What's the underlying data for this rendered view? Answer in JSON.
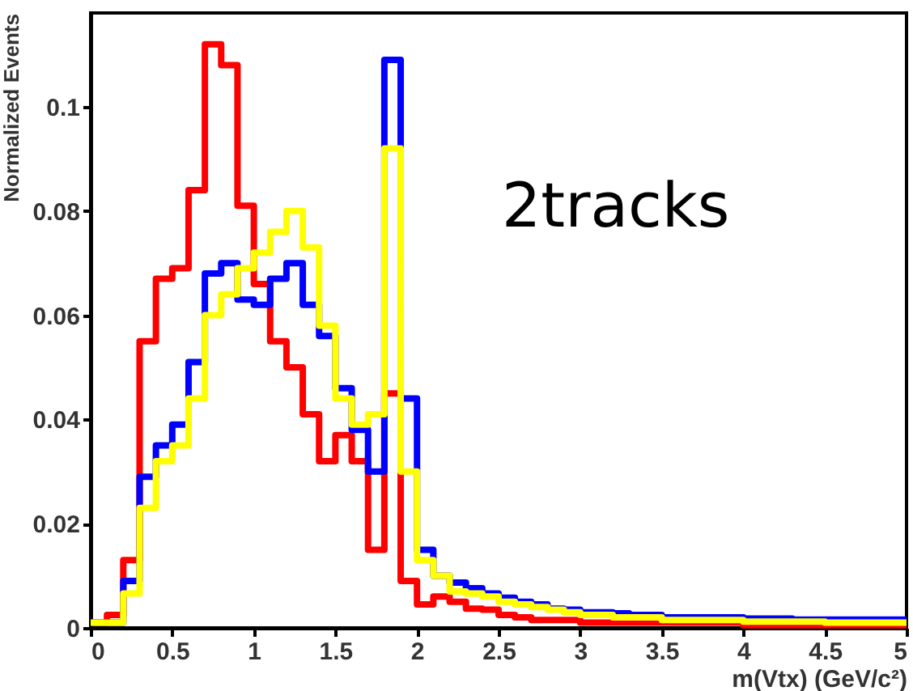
{
  "chart_data": {
    "type": "histogram",
    "xlabel": "m(Vtx) (GeV/c²)",
    "ylabel": "Normalized Events",
    "annotations": [
      "2tracks"
    ],
    "bins": [
      0,
      0.1,
      0.2,
      0.3,
      0.4,
      0.5,
      0.6,
      0.7,
      0.8,
      0.9,
      1,
      1.1,
      1.2,
      1.3,
      1.4,
      1.5,
      1.6,
      1.7,
      1.8,
      1.9,
      2,
      2.1,
      2.2,
      2.3,
      2.4,
      2.5,
      2.6,
      2.7,
      2.8,
      2.9,
      3,
      3.1,
      3.2,
      3.3,
      3.4,
      3.5,
      3.6,
      3.7,
      3.8,
      3.9,
      4,
      4.1,
      4.2,
      4.3,
      4.4,
      4.5,
      4.6,
      4.7,
      4.8,
      4.9,
      5
    ],
    "series": [
      {
        "color": "#ff0000",
        "values": [
          0.001,
          0.0025,
          0.013,
          0.055,
          0.067,
          0.069,
          0.084,
          0.112,
          0.108,
          0.081,
          0.066,
          0.055,
          0.05,
          0.041,
          0.032,
          0.037,
          0.032,
          0.015,
          0.045,
          0.009,
          0.0045,
          0.006,
          0.005,
          0.0037,
          0.0035,
          0.0025,
          0.002,
          0.0015,
          0.0015,
          0.0015,
          0.001,
          0.001,
          0.001,
          0.001,
          0.001,
          0.001,
          0.001,
          0.001,
          0.001,
          0.001,
          0.0005,
          0.0005,
          0.0005,
          0.0005,
          0.0005,
          0.0005,
          0.0005,
          0.0005,
          0.0005,
          0.0005
        ]
      },
      {
        "color": "#0000ff",
        "values": [
          0.001,
          0.001,
          0.009,
          0.029,
          0.035,
          0.039,
          0.051,
          0.068,
          0.07,
          0.063,
          0.062,
          0.067,
          0.07,
          0.062,
          0.056,
          0.046,
          0.038,
          0.03,
          0.109,
          0.044,
          0.015,
          0.01,
          0.0087,
          0.0076,
          0.0066,
          0.0058,
          0.005,
          0.0045,
          0.0037,
          0.0035,
          0.003,
          0.003,
          0.0028,
          0.0025,
          0.0025,
          0.002,
          0.002,
          0.002,
          0.002,
          0.002,
          0.0018,
          0.0018,
          0.0018,
          0.0016,
          0.0016,
          0.0016,
          0.0016,
          0.0016,
          0.0016,
          0.0016
        ]
      },
      {
        "color": "#ffff00",
        "values": [
          0.001,
          0.001,
          0.0066,
          0.023,
          0.032,
          0.035,
          0.044,
          0.06,
          0.064,
          0.069,
          0.072,
          0.076,
          0.08,
          0.073,
          0.058,
          0.044,
          0.039,
          0.041,
          0.092,
          0.03,
          0.013,
          0.01,
          0.007,
          0.0066,
          0.006,
          0.005,
          0.0045,
          0.004,
          0.0035,
          0.003,
          0.0025,
          0.0025,
          0.002,
          0.002,
          0.002,
          0.0015,
          0.0015,
          0.0015,
          0.0015,
          0.0015,
          0.0012,
          0.0012,
          0.0012,
          0.0012,
          0.0012,
          0.001,
          0.001,
          0.001,
          0.001,
          0.001
        ]
      }
    ],
    "xlim": [
      0,
      5
    ],
    "ylim": [
      0,
      0.118
    ],
    "xticks": [
      0,
      0.5,
      1,
      1.5,
      2,
      2.5,
      3,
      3.5,
      4,
      4.5,
      5
    ],
    "yticks": [
      0,
      0.02,
      0.04,
      0.06,
      0.08,
      0.1
    ],
    "grid": false,
    "line_style": "solid"
  }
}
